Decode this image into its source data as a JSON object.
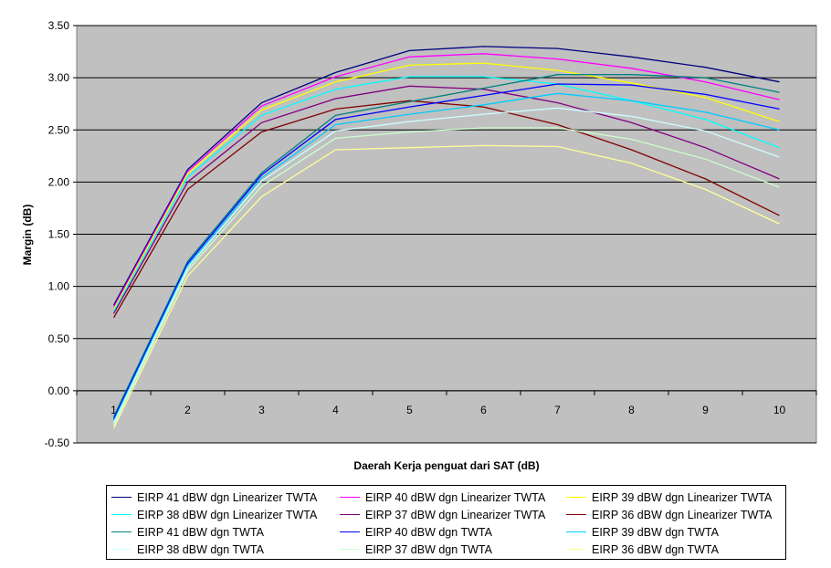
{
  "chart_data": {
    "type": "line",
    "title": "",
    "xlabel": "Daerah Kerja penguat dari SAT (dB)",
    "ylabel": "Margin (dB)",
    "categories": [
      "1",
      "2",
      "3",
      "4",
      "5",
      "6",
      "7",
      "8",
      "9",
      "10"
    ],
    "ylim": [
      -0.5,
      3.5
    ],
    "yticks": [
      "-0.50",
      "0.00",
      "0.50",
      "1.00",
      "1.50",
      "2.00",
      "2.50",
      "3.00",
      "3.50"
    ],
    "grid": "horizontal",
    "plot_background": "#c0c0c0",
    "legend_position": "bottom",
    "series": [
      {
        "name": "EIRP 41 dBW dgn Linearizer TWTA",
        "color": "#000080",
        "values": [
          0.82,
          2.12,
          2.76,
          3.05,
          3.26,
          3.3,
          3.28,
          3.2,
          3.1,
          2.96
        ]
      },
      {
        "name": "EIRP 40 dBW dgn Linearizer TWTA",
        "color": "#ff00ff",
        "values": [
          0.8,
          2.1,
          2.73,
          3.01,
          3.2,
          3.23,
          3.18,
          3.09,
          2.96,
          2.79
        ]
      },
      {
        "name": "EIRP 39 dBW dgn Linearizer TWTA",
        "color": "#ffff00",
        "values": [
          0.78,
          2.08,
          2.69,
          2.96,
          3.12,
          3.14,
          3.07,
          2.95,
          2.81,
          2.58
        ]
      },
      {
        "name": "EIRP 38 dBW dgn Linearizer TWTA",
        "color": "#00ffff",
        "values": [
          0.76,
          2.05,
          2.64,
          2.89,
          3.01,
          3.01,
          2.94,
          2.78,
          2.6,
          2.33
        ]
      },
      {
        "name": "EIRP 37 dBW dgn Linearizer TWTA",
        "color": "#800080",
        "values": [
          0.74,
          2.0,
          2.57,
          2.8,
          2.92,
          2.89,
          2.76,
          2.57,
          2.33,
          2.03
        ]
      },
      {
        "name": "EIRP 36 dBW dgn Linearizer TWTA",
        "color": "#800000",
        "values": [
          0.7,
          1.93,
          2.48,
          2.7,
          2.78,
          2.72,
          2.55,
          2.31,
          2.03,
          1.68
        ]
      },
      {
        "name": "EIRP 41 dBW dgn TWTA",
        "color": "#008080",
        "values": [
          -0.25,
          1.24,
          2.09,
          2.64,
          2.77,
          2.9,
          3.03,
          3.03,
          3.0,
          2.86
        ]
      },
      {
        "name": "EIRP 40 dBW dgn TWTA",
        "color": "#0000ff",
        "values": [
          -0.27,
          1.22,
          2.07,
          2.6,
          2.72,
          2.83,
          2.94,
          2.93,
          2.84,
          2.7
        ]
      },
      {
        "name": "EIRP 39 dBW dgn TWTA",
        "color": "#00ccff",
        "values": [
          -0.29,
          1.2,
          2.04,
          2.55,
          2.65,
          2.74,
          2.85,
          2.78,
          2.67,
          2.5
        ]
      },
      {
        "name": "EIRP 38 dBW dgn TWTA",
        "color": "#ccffff",
        "values": [
          -0.31,
          1.18,
          2.01,
          2.49,
          2.58,
          2.65,
          2.71,
          2.63,
          2.49,
          2.24
        ]
      },
      {
        "name": "EIRP 37 dBW dgn TWTA",
        "color": "#ccffcc",
        "values": [
          -0.33,
          1.15,
          1.96,
          2.42,
          2.48,
          2.52,
          2.52,
          2.41,
          2.22,
          1.95
        ]
      },
      {
        "name": "EIRP 36 dBW dgn TWTA",
        "color": "#ffff99",
        "values": [
          -0.36,
          1.1,
          1.86,
          2.31,
          2.33,
          2.35,
          2.34,
          2.18,
          1.93,
          1.6
        ]
      }
    ]
  }
}
